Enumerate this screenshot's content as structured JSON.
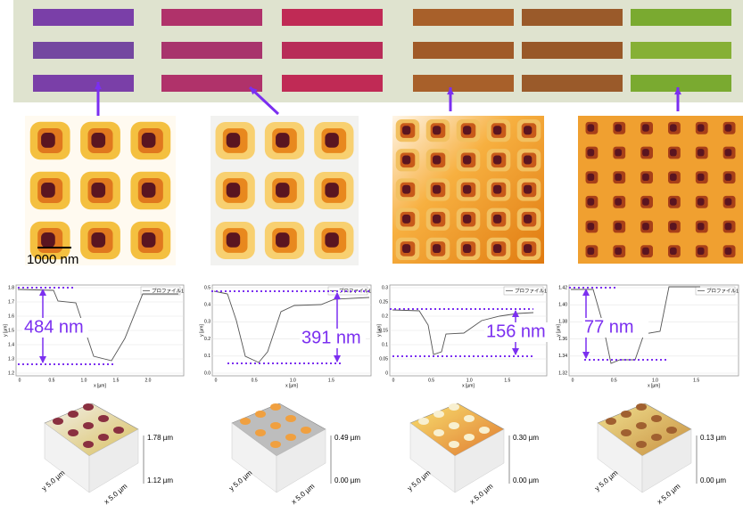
{
  "scale_bar": "1000 nm",
  "profiles": [
    {
      "legend": "プロファイル1",
      "y_label": "y [µm]",
      "x_label": "x [µm]",
      "yticks": [
        "1.8",
        "1.7",
        "1.6",
        "1.5",
        "1.4",
        "1.3",
        "1.2"
      ],
      "xticks": [
        "0",
        "0.5",
        "1.0",
        "1.5",
        "2.0"
      ],
      "depth": "484 nm"
    },
    {
      "legend": "プロファイル1",
      "y_label": "y [µm]",
      "x_label": "x [µm]",
      "yticks": [
        "0.5",
        "0.4",
        "0.3",
        "0.2",
        "0.1",
        "0.0"
      ],
      "xticks": [
        "0",
        "0.5",
        "1.0",
        "1.5"
      ],
      "depth": "391 nm"
    },
    {
      "legend": "プロファイル1",
      "y_label": "y [µm]",
      "x_label": "x [µm]",
      "yticks": [
        "0.3",
        "0.25",
        "0.2",
        "0.15",
        "0.1",
        "0.05",
        "0"
      ],
      "xticks": [
        "0",
        "0.5",
        "1.0",
        "1.5"
      ],
      "depth": "156 nm"
    },
    {
      "legend": "プロファイル1",
      "y_label": "y [µm]",
      "x_label": "x [µm]",
      "yticks": [
        "1.42",
        "1.40",
        "1.38",
        "1.36",
        "1.34",
        "1.32"
      ],
      "xticks": [
        "0",
        "0.5",
        "1.0",
        "1.5"
      ],
      "depth": "77 nm"
    }
  ],
  "surfaces": [
    {
      "top": "1.78 µm",
      "bottom": "1.12 µm",
      "x_axis": "x 5.0 µm",
      "y_axis": "y 5.0 µm"
    },
    {
      "top": "0.49 µm",
      "bottom": "0.00 µm",
      "x_axis": "x 5.0 µm",
      "y_axis": "y 5.0 µm"
    },
    {
      "top": "0.30 µm",
      "bottom": "0.00 µm",
      "x_axis": "x 5.0 µm",
      "y_axis": "y 5.0 µm"
    },
    {
      "top": "0.13 µm",
      "bottom": "0.00 µm",
      "x_axis": "x 5.0 µm",
      "y_axis": "y 5.0 µm"
    }
  ]
}
